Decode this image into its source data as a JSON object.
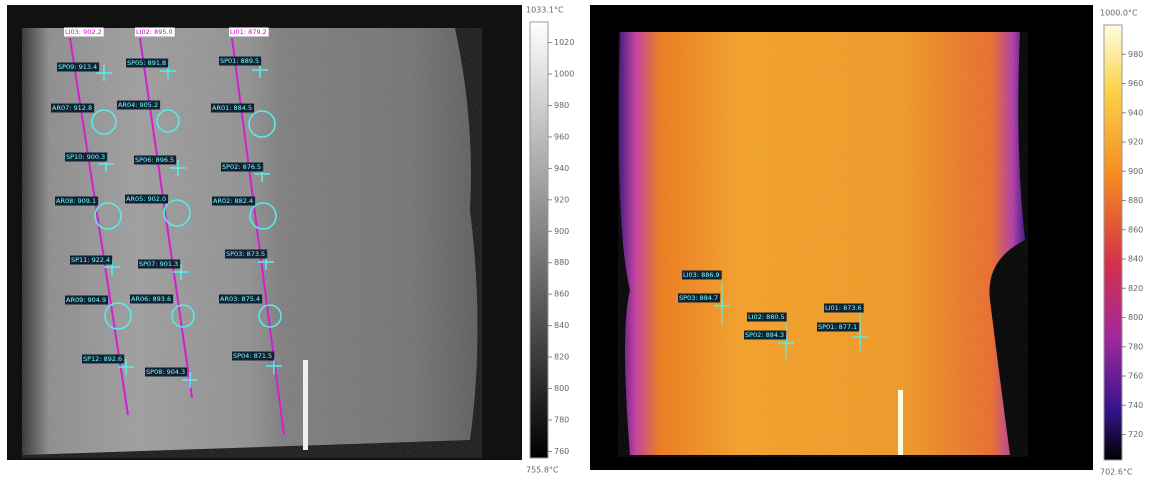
{
  "left_view": {
    "line_labels": [
      "LI03: 902.2",
      "LI02: 895.0",
      "LI01: 879.2"
    ],
    "labels": [
      "SP09: 913.4",
      "SP05: 891.8",
      "SP01: 889.5",
      "AR07: 912.8",
      "AR04: 905.2",
      "AR01: 884.5",
      "SP10: 900.3",
      "SP06: 896.5",
      "SP02: 876.5",
      "AR08: 909.1",
      "AR05: 902.0",
      "AR02: 882.4",
      "SP11: 922.4",
      "SP07: 901.3",
      "SP03: 873.5",
      "AR09: 904.9",
      "AR06: 893.6",
      "AR03: 875.4",
      "SP12: 892.6",
      "SP08: 904.3",
      "SP04: 871.5"
    ],
    "scale": {
      "max": {
        "value": 1033.1,
        "label": "1033.1°C"
      },
      "min": {
        "value": 755.8,
        "label": "755.8°C"
      },
      "ticks": [
        1020,
        1000,
        980,
        960,
        940,
        920,
        900,
        880,
        860,
        840,
        820,
        800,
        780,
        760
      ]
    }
  },
  "right_view": {
    "labels": [
      "LI03: 886.9",
      "SP03: 884.7",
      "LI02: 880.5",
      "SP02: 884.3",
      "LI01: 873.6",
      "SP01: 877.1"
    ],
    "scale": {
      "max": {
        "value": 1000.0,
        "label": "1000.0°C"
      },
      "min": {
        "value": 702.6,
        "label": "702.6°C"
      },
      "ticks": [
        980,
        960,
        940,
        920,
        900,
        880,
        860,
        840,
        820,
        800,
        780,
        760,
        740,
        720
      ]
    }
  }
}
